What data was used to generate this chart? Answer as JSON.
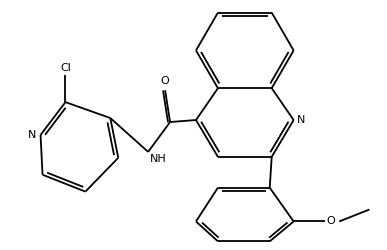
{
  "background_color": "#ffffff",
  "line_color": "#000000",
  "lw": 1.3,
  "dbo": 0.018,
  "figsize": [
    3.87,
    2.5
  ],
  "dpi": 100,
  "xlim": [
    0,
    10
  ],
  "ylim": [
    0,
    6.5
  ],
  "atoms": {
    "N_label_fontsize": 8,
    "Cl_label_fontsize": 8,
    "O_label_fontsize": 8,
    "NH_label_fontsize": 8
  }
}
